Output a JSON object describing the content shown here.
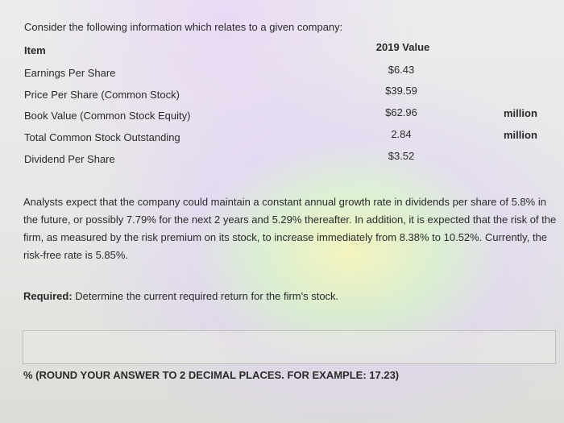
{
  "intro": "Consider the following information which relates to a given company:",
  "table": {
    "header_item": "Item",
    "header_value": "2019 Value",
    "rows": [
      {
        "item": "Earnings Per Share",
        "value": "$6.43",
        "unit": ""
      },
      {
        "item": "Price Per Share (Common Stock)",
        "value": "$39.59",
        "unit": ""
      },
      {
        "item": "Book Value (Common Stock Equity)",
        "value": "$62.96",
        "unit": "million"
      },
      {
        "item": "Total Common Stock Outstanding",
        "value": "2.84",
        "unit": "million"
      },
      {
        "item": "Dividend Per Share",
        "value": "$3.52",
        "unit": ""
      }
    ]
  },
  "paragraph": "Analysts expect that the company could maintain a constant annual growth rate in dividends per share of 5.8% in the future, or possibly 7.79% for the next 2 years and 5.29% thereafter. In addition, it is expected that the risk of the firm, as measured by the risk premium on its stock, to increase immediately from 8.38% to 10.52%. Currently, the risk-free rate is 5.85%.",
  "required": {
    "label": "Required:",
    "text": " Determine the current required return for the firm's stock."
  },
  "answer": {
    "value": "",
    "note": "% (ROUND YOUR ANSWER TO 2 DECIMAL PLACES. FOR EXAMPLE: 17.23)"
  }
}
